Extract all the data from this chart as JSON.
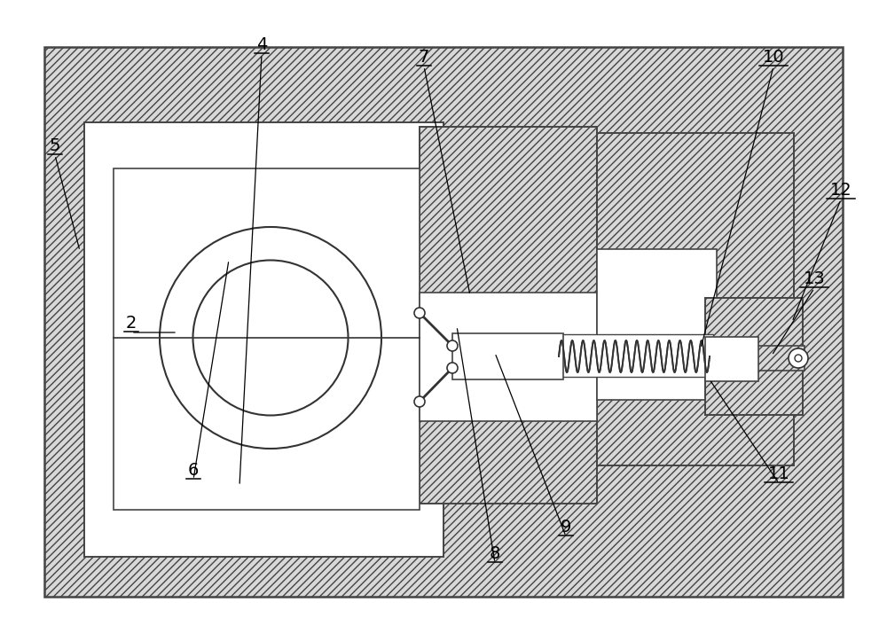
{
  "figsize": [
    10.0,
    7.23
  ],
  "dpi": 100,
  "white": "#ffffff",
  "hatch_fc": "#d8d8d8",
  "ec": "#444444",
  "lc": "#333333",
  "labels_info": [
    [
      "4",
      295,
      662,
      270,
      175
    ],
    [
      "5",
      62,
      548,
      90,
      440
    ],
    [
      "2",
      148,
      348,
      200,
      348
    ],
    [
      "6",
      218,
      182,
      258,
      430
    ],
    [
      "7",
      478,
      648,
      530,
      390
    ],
    [
      "8",
      558,
      88,
      515,
      355
    ],
    [
      "9",
      638,
      118,
      558,
      325
    ],
    [
      "10",
      872,
      648,
      790,
      330
    ],
    [
      "11",
      878,
      178,
      800,
      295
    ],
    [
      "12",
      948,
      498,
      893,
      360
    ],
    [
      "13",
      918,
      398,
      870,
      322
    ]
  ]
}
